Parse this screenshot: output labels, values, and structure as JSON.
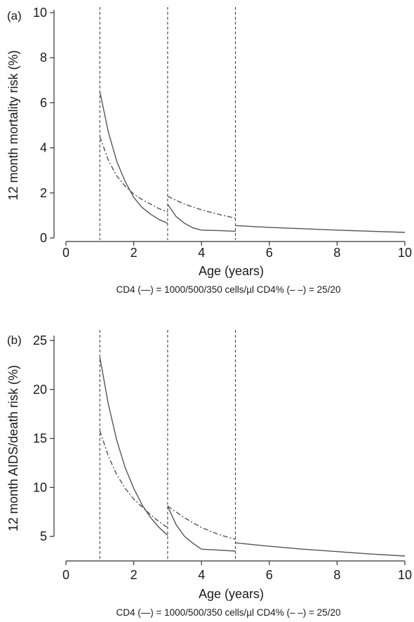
{
  "chart_data": [
    {
      "type": "line",
      "panel_label": "(a)",
      "ylabel": "12 month mortality risk (%)",
      "xlabel": "Age (years)",
      "caption": "CD4 (—) = 1000/500/350 cells/µl    CD4% (– –) = 25/20",
      "xlim": [
        0,
        10
      ],
      "ylim": [
        0,
        10
      ],
      "xticks": [
        0,
        2,
        4,
        6,
        8,
        10
      ],
      "yticks": [
        0,
        2,
        4,
        6,
        8,
        10
      ],
      "vlines": [
        1,
        3,
        5
      ],
      "series": [
        {
          "style": "solid",
          "segments": [
            {
              "x": [
                1,
                1.25,
                1.5,
                1.75,
                2,
                2.25,
                2.5,
                2.75,
                3
              ],
              "y": [
                6.5,
                4.7,
                3.4,
                2.5,
                1.8,
                1.35,
                1.05,
                0.82,
                0.65
              ]
            },
            {
              "x": [
                3,
                3.25,
                3.5,
                3.75,
                4,
                4.5,
                5
              ],
              "y": [
                1.5,
                0.95,
                0.65,
                0.45,
                0.35,
                0.33,
                0.3
              ]
            },
            {
              "x": [
                5,
                6,
                7,
                8,
                9,
                10
              ],
              "y": [
                0.55,
                0.47,
                0.41,
                0.35,
                0.3,
                0.25
              ]
            }
          ]
        },
        {
          "style": "dashdot",
          "segments": [
            {
              "x": [
                1,
                1.25,
                1.5,
                1.75,
                2,
                2.25,
                2.5,
                2.75,
                3
              ],
              "y": [
                4.5,
                3.45,
                2.75,
                2.3,
                1.95,
                1.7,
                1.5,
                1.3,
                1.15
              ]
            },
            {
              "x": [
                3,
                3.5,
                4,
                4.5,
                5
              ],
              "y": [
                1.85,
                1.5,
                1.25,
                1.05,
                0.88
              ]
            }
          ]
        }
      ]
    },
    {
      "type": "line",
      "panel_label": "(b)",
      "ylabel": "12 month AIDS/death risk (%)",
      "xlabel": "Age (years)",
      "caption": "CD4 (—) = 1000/500/350 cells/µl    CD4% (– –) = 25/20",
      "xlim": [
        0,
        10
      ],
      "ylim": [
        2.5,
        25.5
      ],
      "xticks": [
        0,
        2,
        4,
        6,
        8,
        10
      ],
      "yticks": [
        5,
        10,
        15,
        20,
        25
      ],
      "vlines": [
        1,
        3,
        5
      ],
      "series": [
        {
          "style": "solid",
          "segments": [
            {
              "x": [
                1,
                1.25,
                1.5,
                1.75,
                2,
                2.25,
                2.5,
                2.75,
                3
              ],
              "y": [
                23.3,
                18.5,
                14.8,
                12.0,
                9.9,
                8.2,
                6.9,
                5.9,
                5.1
              ]
            },
            {
              "x": [
                3,
                3.25,
                3.5,
                3.75,
                4,
                4.5,
                5
              ],
              "y": [
                8.1,
                6.2,
                5.0,
                4.3,
                3.7,
                3.6,
                3.5
              ]
            },
            {
              "x": [
                5,
                6,
                7,
                8,
                9,
                10
              ],
              "y": [
                4.35,
                4.0,
                3.7,
                3.45,
                3.2,
                3.0
              ]
            }
          ]
        },
        {
          "style": "dashdot",
          "segments": [
            {
              "x": [
                1,
                1.25,
                1.5,
                1.75,
                2,
                2.25,
                2.5,
                2.75,
                3
              ],
              "y": [
                15.8,
                13.2,
                11.3,
                9.9,
                8.8,
                8.0,
                7.2,
                6.5,
                5.9
              ]
            },
            {
              "x": [
                3,
                3.5,
                4,
                4.5,
                5
              ],
              "y": [
                8.1,
                6.9,
                5.9,
                5.2,
                4.7
              ]
            }
          ]
        }
      ]
    }
  ]
}
